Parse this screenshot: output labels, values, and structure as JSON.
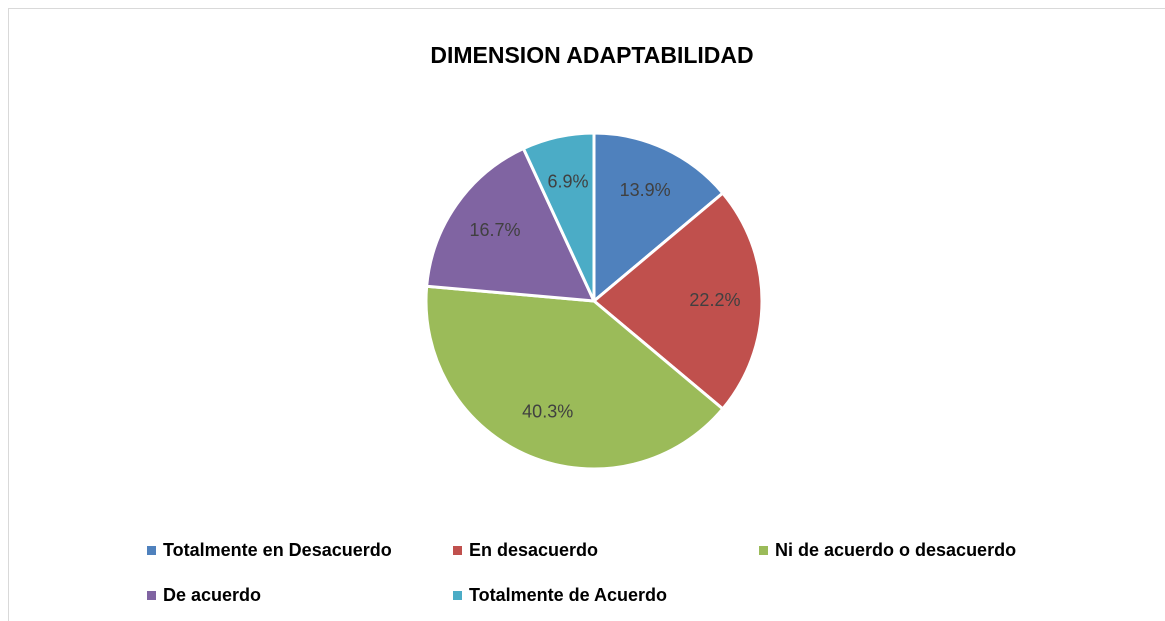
{
  "chart_data": {
    "type": "pie",
    "title": "DIMENSION ADAPTABILIDAD",
    "categories": [
      "Totalmente en Desacuerdo",
      "En desacuerdo",
      "Ni de acuerdo o desacuerdo",
      "De acuerdo",
      "Totalmente de Acuerdo"
    ],
    "values": [
      13.9,
      22.2,
      40.3,
      16.7,
      6.9
    ],
    "value_labels": [
      "13.9%",
      "22.2%",
      "40.3%",
      "16.7%",
      "6.9%"
    ],
    "colors": [
      "#4f81bd",
      "#c0504d",
      "#9bbb59",
      "#8064a2",
      "#4bacc6"
    ],
    "legend": "bottom"
  }
}
